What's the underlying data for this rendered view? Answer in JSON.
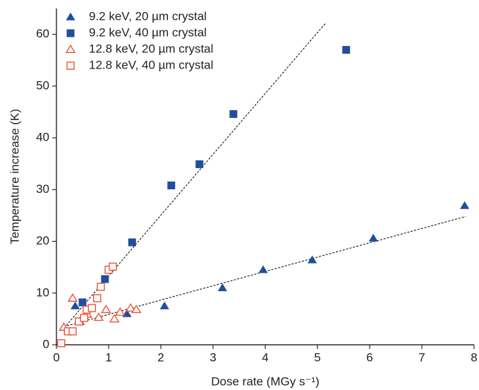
{
  "chart_data": {
    "type": "scatter",
    "x_label": "Dose rate (MGy s⁻¹)",
    "y_label": "Temperature increase (K)",
    "xlim": [
      0,
      8
    ],
    "xticks": [
      0,
      1,
      2,
      3,
      4,
      5,
      6,
      7,
      8
    ],
    "ylim": [
      0,
      65
    ],
    "yticks": [
      0,
      10,
      20,
      30,
      40,
      50,
      60
    ],
    "legend": "upper-left",
    "series": [
      {
        "name": "9.2 keV, 20 µm crystal",
        "color": "#1f4e9c",
        "marker": "triangle",
        "filled": true,
        "x": [
          0.36,
          1.35,
          2.07,
          3.18,
          3.96,
          4.9,
          6.07,
          7.82
        ],
        "values": [
          7.5,
          6.0,
          7.5,
          11.0,
          14.5,
          16.4,
          20.6,
          26.9
        ]
      },
      {
        "name": "9.2 keV, 40 µm crystal",
        "color": "#1f4e9c",
        "marker": "square",
        "filled": true,
        "x": [
          0.5,
          0.93,
          1.45,
          2.2,
          2.74,
          3.39,
          5.55
        ],
        "values": [
          8.2,
          12.7,
          19.8,
          30.8,
          34.9,
          44.6,
          57.0
        ]
      },
      {
        "name": "12.8 keV, 20 µm crystal",
        "color": "#e8553a",
        "marker": "triangle",
        "filled": false,
        "x": [
          0.14,
          0.31,
          0.45,
          0.59,
          0.81,
          0.95,
          1.11,
          1.22,
          1.42,
          1.53
        ],
        "values": [
          3.4,
          9.0,
          4.5,
          5.9,
          5.3,
          6.8,
          5.0,
          6.3,
          7.1,
          6.8
        ]
      },
      {
        "name": "12.8 keV, 40 µm crystal",
        "color": "#e8553a",
        "marker": "square",
        "filled": false,
        "x": [
          0.09,
          0.22,
          0.31,
          0.43,
          0.53,
          0.58,
          0.68,
          0.78,
          0.85,
          1.0,
          1.08
        ],
        "values": [
          0.3,
          2.6,
          2.6,
          4.5,
          5.2,
          6.8,
          7.1,
          9.0,
          11.2,
          14.5,
          15.1
        ]
      }
    ],
    "fit_lines": [
      {
        "x": [
          0.1,
          5.15
        ],
        "values": [
          2.7,
          62.1
        ],
        "color": "#000000",
        "dashed": true
      },
      {
        "x": [
          0.14,
          7.84
        ],
        "values": [
          3.5,
          24.8
        ],
        "color": "#000000",
        "dashed": true
      }
    ]
  }
}
